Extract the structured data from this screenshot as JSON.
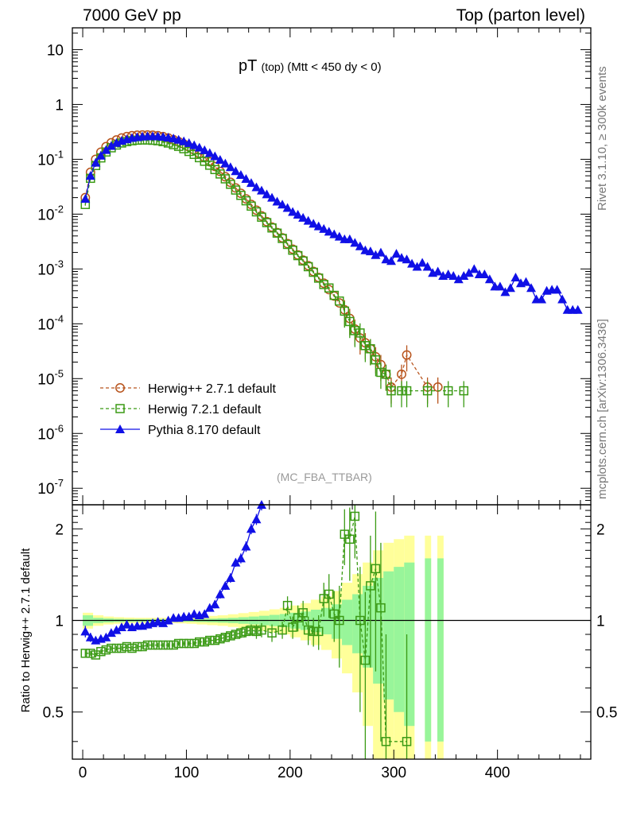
{
  "header": {
    "left": "7000 GeV pp",
    "right": "Top (parton level)"
  },
  "side_labels": {
    "rivet": "Rivet 3.1.10, ≥ 300k events",
    "mcplots": "mcplots.cern.ch [arXiv:1306.3436]"
  },
  "colors": {
    "herwigpp": "#b8541d",
    "herwig7": "#3a9a14",
    "pythia": "#1010e6",
    "band_inner": "#98f59a",
    "band_outer": "#ffff9a"
  },
  "chart_data": {
    "type": "line",
    "title_main": "pT",
    "title_sub": "(top)",
    "title_cond": "(Mtt < 450 dy < 0)",
    "analysis": "(MC_FBA_TTBAR)",
    "xlim": [
      -10,
      490
    ],
    "x_ticks": [
      "0",
      "100",
      "200",
      "300",
      "400"
    ],
    "main": {
      "ylim": [
        5e-08,
        25
      ],
      "yscale": "log",
      "y_ticks": [
        {
          "value": 10,
          "label": "10"
        },
        {
          "value": 1,
          "label": "1"
        },
        {
          "value": 0.1,
          "label": "10^-1"
        },
        {
          "value": 0.01,
          "label": "10^-2"
        },
        {
          "value": 0.001,
          "label": "10^-3"
        },
        {
          "value": 0.0001,
          "label": "10^-4"
        },
        {
          "value": 1e-05,
          "label": "10^-5"
        },
        {
          "value": 1e-06,
          "label": "10^-6"
        },
        {
          "value": 1e-07,
          "label": "10^-7"
        }
      ],
      "series": [
        {
          "name": "Herwig++ 2.7.1 default",
          "key": "herwigpp",
          "marker": "circle",
          "x": [
            2.5,
            7.5,
            12.5,
            17.5,
            22.5,
            27.5,
            32.5,
            37.5,
            42.5,
            47.5,
            52.5,
            57.5,
            62.5,
            67.5,
            72.5,
            77.5,
            82.5,
            87.5,
            92.5,
            97.5,
            102.5,
            107.5,
            112.5,
            117.5,
            122.5,
            127.5,
            132.5,
            137.5,
            142.5,
            147.5,
            152.5,
            157.5,
            162.5,
            167.5,
            172.5,
            177.5,
            182.5,
            187.5,
            192.5,
            197.5,
            202.5,
            207.5,
            212.5,
            217.5,
            222.5,
            227.5,
            232.5,
            237.5,
            242.5,
            247.5,
            252.5,
            257.5,
            262.5,
            267.5,
            272.5,
            277.5,
            282.5,
            287.5,
            292.5,
            297.5,
            307.5,
            312.5,
            332.5,
            342.5
          ],
          "y": [
            0.02,
            0.058,
            0.1,
            0.135,
            0.17,
            0.2,
            0.225,
            0.245,
            0.26,
            0.27,
            0.275,
            0.278,
            0.278,
            0.275,
            0.27,
            0.26,
            0.245,
            0.228,
            0.21,
            0.19,
            0.168,
            0.147,
            0.127,
            0.108,
            0.09,
            0.074,
            0.06,
            0.048,
            0.038,
            0.03,
            0.024,
            0.019,
            0.015,
            0.0118,
            0.0093,
            0.0073,
            0.0058,
            0.0046,
            0.0037,
            0.0029,
            0.0023,
            0.0018,
            0.00145,
            0.00115,
            0.0009,
            0.0007,
            0.00055,
            0.00042,
            0.00032,
            0.00024,
            0.00018,
            0.000125,
            8e-05,
            5.5e-05,
            4.5e-05,
            3.5e-05,
            2.5e-05,
            1.8e-05,
            1.2e-05,
            7e-06,
            1.2e-05,
            2.7e-05,
            7e-06,
            7e-06
          ],
          "yerr_frac": 0.04
        },
        {
          "name": "Herwig 7.2.1 default",
          "key": "herwig7",
          "marker": "square",
          "x": [
            2.5,
            7.5,
            12.5,
            17.5,
            22.5,
            27.5,
            32.5,
            37.5,
            42.5,
            47.5,
            52.5,
            57.5,
            62.5,
            67.5,
            72.5,
            77.5,
            82.5,
            87.5,
            92.5,
            97.5,
            102.5,
            107.5,
            112.5,
            117.5,
            122.5,
            127.5,
            132.5,
            137.5,
            142.5,
            147.5,
            152.5,
            157.5,
            162.5,
            167.5,
            172.5,
            177.5,
            182.5,
            187.5,
            192.5,
            197.5,
            202.5,
            207.5,
            212.5,
            217.5,
            222.5,
            227.5,
            232.5,
            237.5,
            242.5,
            247.5,
            252.5,
            257.5,
            262.5,
            267.5,
            272.5,
            277.5,
            282.5,
            287.5,
            292.5,
            297.5,
            307.5,
            312.5,
            332.5,
            352.5,
            367.5
          ],
          "y": [
            0.015,
            0.045,
            0.077,
            0.106,
            0.136,
            0.162,
            0.182,
            0.198,
            0.21,
            0.218,
            0.223,
            0.225,
            0.225,
            0.222,
            0.218,
            0.21,
            0.198,
            0.185,
            0.172,
            0.156,
            0.139,
            0.123,
            0.107,
            0.092,
            0.078,
            0.065,
            0.054,
            0.044,
            0.035,
            0.0275,
            0.022,
            0.0175,
            0.014,
            0.011,
            0.0088,
            0.007,
            0.0056,
            0.0045,
            0.0036,
            0.0028,
            0.0022,
            0.00175,
            0.0014,
            0.0011,
            0.00087,
            0.00068,
            0.00052,
            0.00045,
            0.00033,
            0.00026,
            0.00017,
            0.00011,
            7.5e-05,
            6.8e-05,
            4e-05,
            3.5e-05,
            2.2e-05,
            1.3e-05,
            1.2e-05,
            6e-06,
            6e-06,
            6e-06,
            6e-06,
            6e-06,
            6e-06
          ],
          "yerr_frac": 0.05
        },
        {
          "name": "Pythia 8.170 default",
          "key": "pythia",
          "marker": "triangle",
          "x": [
            2.5,
            7.5,
            12.5,
            17.5,
            22.5,
            27.5,
            32.5,
            37.5,
            42.5,
            47.5,
            52.5,
            57.5,
            62.5,
            67.5,
            72.5,
            77.5,
            82.5,
            87.5,
            92.5,
            97.5,
            102.5,
            107.5,
            112.5,
            117.5,
            122.5,
            127.5,
            132.5,
            137.5,
            142.5,
            147.5,
            152.5,
            157.5,
            162.5,
            167.5,
            172.5,
            177.5,
            182.5,
            187.5,
            192.5,
            197.5,
            202.5,
            207.5,
            212.5,
            217.5,
            222.5,
            227.5,
            232.5,
            237.5,
            242.5,
            247.5,
            252.5,
            257.5,
            262.5,
            267.5,
            272.5,
            277.5,
            282.5,
            287.5,
            292.5,
            297.5,
            302.5,
            307.5,
            312.5,
            317.5,
            322.5,
            327.5,
            332.5,
            337.5,
            342.5,
            347.5,
            352.5,
            357.5,
            362.5,
            367.5,
            372.5,
            377.5,
            382.5,
            387.5,
            392.5,
            397.5,
            402.5,
            407.5,
            412.5,
            417.5,
            422.5,
            427.5,
            432.5,
            437.5,
            442.5,
            447.5,
            452.5,
            457.5,
            462.5,
            467.5,
            472.5,
            477.5
          ],
          "y": [
            0.019,
            0.05,
            0.087,
            0.117,
            0.148,
            0.176,
            0.199,
            0.218,
            0.232,
            0.245,
            0.254,
            0.26,
            0.263,
            0.264,
            0.262,
            0.258,
            0.25,
            0.24,
            0.228,
            0.214,
            0.198,
            0.181,
            0.164,
            0.147,
            0.13,
            0.114,
            0.098,
            0.084,
            0.072,
            0.061,
            0.052,
            0.044,
            0.037,
            0.031,
            0.027,
            0.023,
            0.02,
            0.017,
            0.015,
            0.013,
            0.011,
            0.0098,
            0.0086,
            0.0076,
            0.0067,
            0.006,
            0.0054,
            0.0048,
            0.0043,
            0.0039,
            0.0035,
            0.0035,
            0.003,
            0.0026,
            0.0022,
            0.0021,
            0.0018,
            0.002,
            0.0015,
            0.0014,
            0.0019,
            0.0016,
            0.0015,
            0.00125,
            0.0011,
            0.0013,
            0.0011,
            0.00085,
            0.0009,
            0.00075,
            0.0008,
            0.00075,
            0.00065,
            0.00075,
            0.00085,
            0.001,
            0.0008,
            0.0008,
            0.00065,
            0.00048,
            0.00048,
            0.00038,
            0.00045,
            0.0007,
            0.00055,
            0.00058,
            0.00045,
            0.00028,
            0.00028,
            0.0004,
            0.00042,
            0.00042,
            0.00028,
            0.00018,
            0.00018,
            0.00018
          ],
          "yerr_frac": 0.12
        }
      ]
    },
    "ratio": {
      "ylabel": "Ratio to Herwig++ 2.7.1 default",
      "ylim": [
        0.35,
        2.4
      ],
      "yscale": "log",
      "y_ticks": [
        {
          "value": 0.5,
          "label": "0.5"
        },
        {
          "value": 1,
          "label": "1"
        },
        {
          "value": 2,
          "label": "2"
        }
      ],
      "band_x": [
        0,
        10,
        20,
        30,
        40,
        50,
        60,
        70,
        80,
        90,
        100,
        110,
        120,
        130,
        140,
        150,
        160,
        170,
        180,
        190,
        200,
        210,
        220,
        230,
        240,
        250,
        260,
        270,
        280,
        290,
        300,
        310,
        320
      ],
      "band_inner": [
        0.04,
        0.02,
        0.015,
        0.012,
        0.01,
        0.01,
        0.01,
        0.01,
        0.01,
        0.01,
        0.01,
        0.012,
        0.014,
        0.017,
        0.02,
        0.025,
        0.03,
        0.036,
        0.043,
        0.05,
        0.06,
        0.07,
        0.085,
        0.1,
        0.13,
        0.17,
        0.22,
        0.3,
        0.38,
        0.45,
        0.5,
        0.55,
        0.6
      ],
      "band_outer": [
        0.06,
        0.04,
        0.03,
        0.025,
        0.022,
        0.02,
        0.02,
        0.02,
        0.02,
        0.022,
        0.025,
        0.03,
        0.035,
        0.04,
        0.048,
        0.057,
        0.066,
        0.076,
        0.088,
        0.1,
        0.12,
        0.14,
        0.17,
        0.2,
        0.25,
        0.33,
        0.42,
        0.55,
        0.7,
        0.8,
        0.85,
        0.9,
        0.92
      ],
      "extra_bands": [
        {
          "x0": 330,
          "x1": 336,
          "inner": 0.6,
          "outer": 0.9
        },
        {
          "x0": 342,
          "x1": 348,
          "inner": 0.6,
          "outer": 0.9
        }
      ],
      "series": [
        {
          "key": "herwig7",
          "marker": "square",
          "x": [
            2.5,
            7.5,
            12.5,
            17.5,
            22.5,
            27.5,
            32.5,
            37.5,
            42.5,
            47.5,
            52.5,
            57.5,
            62.5,
            67.5,
            72.5,
            77.5,
            82.5,
            87.5,
            92.5,
            97.5,
            102.5,
            107.5,
            112.5,
            117.5,
            122.5,
            127.5,
            132.5,
            137.5,
            142.5,
            147.5,
            152.5,
            157.5,
            162.5,
            167.5,
            172.5,
            182.5,
            192.5,
            197.5,
            202.5,
            207.5,
            212.5,
            217.5,
            222.5,
            227.5,
            232.5,
            237.5,
            242.5,
            247.5,
            252.5,
            257.5,
            262.5,
            267.5,
            272.5,
            277.5,
            282.5,
            287.5,
            292.5,
            312.5
          ],
          "y": [
            0.78,
            0.78,
            0.77,
            0.79,
            0.8,
            0.81,
            0.81,
            0.81,
            0.82,
            0.81,
            0.82,
            0.82,
            0.83,
            0.83,
            0.83,
            0.83,
            0.83,
            0.83,
            0.84,
            0.84,
            0.84,
            0.84,
            0.85,
            0.85,
            0.86,
            0.86,
            0.87,
            0.88,
            0.89,
            0.9,
            0.91,
            0.92,
            0.93,
            0.92,
            0.93,
            0.91,
            0.93,
            1.12,
            0.95,
            1.02,
            1.06,
            0.93,
            0.92,
            0.92,
            1.18,
            1.22,
            1.05,
            1.0,
            1.92,
            1.85,
            2.2,
            1.0,
            0.74,
            1.3,
            1.48,
            1.1,
            0.4,
            0.4
          ],
          "yerr": [
            0.02,
            0.015,
            0.015,
            0.015,
            0.015,
            0.015,
            0.015,
            0.015,
            0.015,
            0.015,
            0.015,
            0.015,
            0.015,
            0.015,
            0.015,
            0.015,
            0.015,
            0.015,
            0.015,
            0.015,
            0.015,
            0.015,
            0.02,
            0.02,
            0.02,
            0.02,
            0.025,
            0.025,
            0.03,
            0.03,
            0.035,
            0.04,
            0.04,
            0.05,
            0.05,
            0.06,
            0.06,
            0.08,
            0.08,
            0.1,
            0.1,
            0.1,
            0.1,
            0.12,
            0.15,
            0.2,
            0.2,
            0.3,
            0.4,
            0.5,
            0.6,
            0.5,
            0.5,
            0.6,
            0.8,
            0.7,
            0.5,
            0.5
          ]
        },
        {
          "key": "pythia",
          "marker": "triangle",
          "x": [
            2.5,
            7.5,
            12.5,
            17.5,
            22.5,
            27.5,
            32.5,
            37.5,
            42.5,
            47.5,
            52.5,
            57.5,
            62.5,
            67.5,
            72.5,
            77.5,
            82.5,
            87.5,
            92.5,
            97.5,
            102.5,
            107.5,
            112.5,
            117.5,
            122.5,
            127.5,
            132.5,
            137.5,
            142.5,
            147.5,
            152.5,
            157.5,
            162.5,
            167.5,
            172.5
          ],
          "y": [
            0.92,
            0.88,
            0.86,
            0.87,
            0.88,
            0.91,
            0.93,
            0.95,
            0.97,
            0.95,
            0.96,
            0.96,
            0.97,
            0.98,
            0.99,
            0.98,
            1.0,
            1.02,
            1.02,
            1.03,
            1.03,
            1.05,
            1.04,
            1.05,
            1.1,
            1.13,
            1.22,
            1.3,
            1.38,
            1.55,
            1.6,
            1.75,
            2.0,
            2.15,
            2.4
          ],
          "yerr": [
            0.04,
            0.03,
            0.025,
            0.025,
            0.02,
            0.02,
            0.02,
            0.02,
            0.02,
            0.02,
            0.02,
            0.02,
            0.02,
            0.02,
            0.02,
            0.02,
            0.02,
            0.02,
            0.02,
            0.02,
            0.025,
            0.025,
            0.025,
            0.03,
            0.03,
            0.035,
            0.04,
            0.04,
            0.05,
            0.05,
            0.06,
            0.07,
            0.08,
            0.09,
            0.1
          ]
        }
      ]
    }
  }
}
